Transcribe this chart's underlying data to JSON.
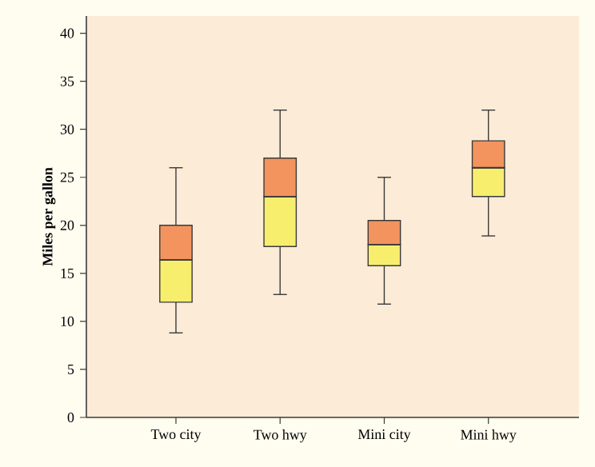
{
  "chart_data": {
    "type": "box",
    "ylabel": "Miles per gallon",
    "categories": [
      "Two city",
      "Two hwy",
      "Mini city",
      "Mini hwy"
    ],
    "colors": [
      [
        "#f8ee6e",
        "#f3945e"
      ],
      [
        "#f8ee6e",
        "#f3945e"
      ],
      [
        "#f8ee6e",
        "#f3945e"
      ],
      [
        "#f8ee6e",
        "#f3945e"
      ]
    ],
    "boxes": [
      {
        "low": 8.8,
        "q1": 12,
        "median": 16.4,
        "q3": 20,
        "high": 26
      },
      {
        "low": 12.8,
        "q1": 17.8,
        "median": 23,
        "q3": 27,
        "high": 32
      },
      {
        "low": 11.8,
        "q1": 15.8,
        "median": 18,
        "q3": 20.5,
        "high": 25
      },
      {
        "low": 18.9,
        "q1": 23,
        "median": 26,
        "q3": 28.8,
        "high": 32
      }
    ],
    "ylim": [
      0,
      41.8
    ],
    "yticks": [
      0,
      5,
      10,
      15,
      20,
      25,
      30,
      35,
      40
    ]
  }
}
